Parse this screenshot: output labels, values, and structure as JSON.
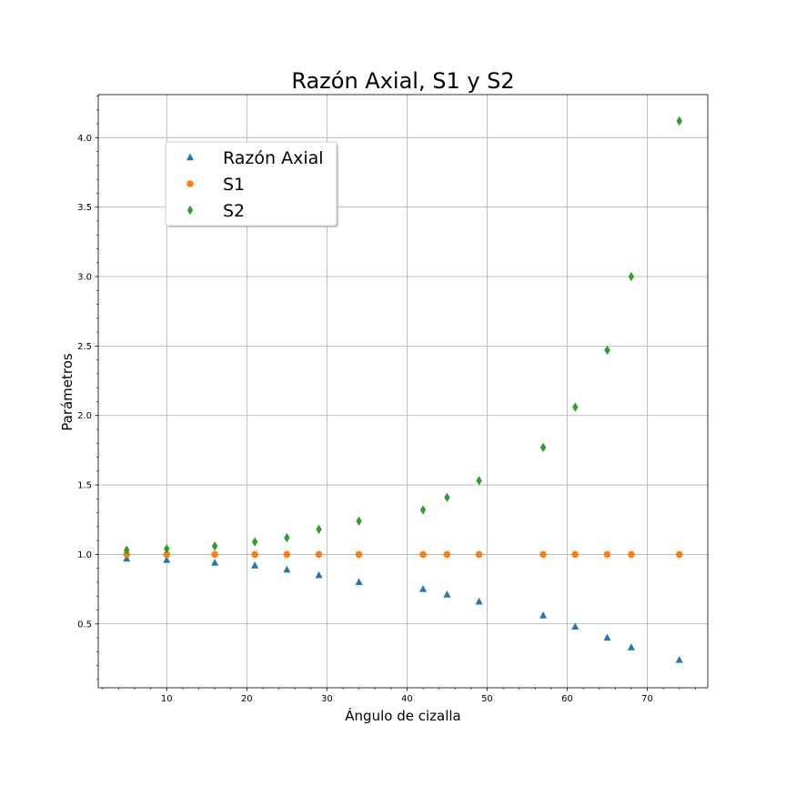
{
  "chart_data": {
    "type": "scatter",
    "title": "Razón Axial, S1 y S2",
    "xlabel": "Ángulo de cizalla",
    "ylabel": "Parámetros",
    "xlim": [
      1.45,
      77.55
    ],
    "ylim": [
      0.04,
      4.31
    ],
    "x_ticks": [
      10,
      20,
      30,
      40,
      50,
      60,
      70
    ],
    "x_tick_labels": [
      "10",
      "20",
      "30",
      "40",
      "50",
      "60",
      "70"
    ],
    "y_ticks": [
      0.5,
      1.0,
      1.5,
      2.0,
      2.5,
      3.0,
      3.5,
      4.0
    ],
    "y_tick_labels": [
      "0.5",
      "1.0",
      "1.5",
      "2.0",
      "2.5",
      "3.0",
      "3.5",
      "4.0"
    ],
    "grid": true,
    "minor_ticks": true,
    "legend_position": "upper-left",
    "x": [
      5,
      10,
      16,
      21,
      25,
      29,
      34,
      42,
      45,
      49,
      57,
      61,
      65,
      68,
      74
    ],
    "series": [
      {
        "name": "Razón Axial",
        "marker": "triangle",
        "color": "#1f77b4",
        "values": [
          0.97,
          0.96,
          0.94,
          0.92,
          0.89,
          0.85,
          0.8,
          0.75,
          0.71,
          0.66,
          0.56,
          0.48,
          0.4,
          0.33,
          0.24
        ]
      },
      {
        "name": "S1",
        "marker": "circle",
        "color": "#ff7f0e",
        "values": [
          1.0,
          1.0,
          1.0,
          1.0,
          1.0,
          1.0,
          1.0,
          1.0,
          1.0,
          1.0,
          1.0,
          1.0,
          1.0,
          1.0,
          1.0
        ]
      },
      {
        "name": "S2",
        "marker": "diamond",
        "color": "#2ca02c",
        "values": [
          1.03,
          1.04,
          1.06,
          1.09,
          1.12,
          1.18,
          1.24,
          1.32,
          1.41,
          1.53,
          1.77,
          2.06,
          2.47,
          3.0,
          4.12
        ]
      }
    ]
  }
}
